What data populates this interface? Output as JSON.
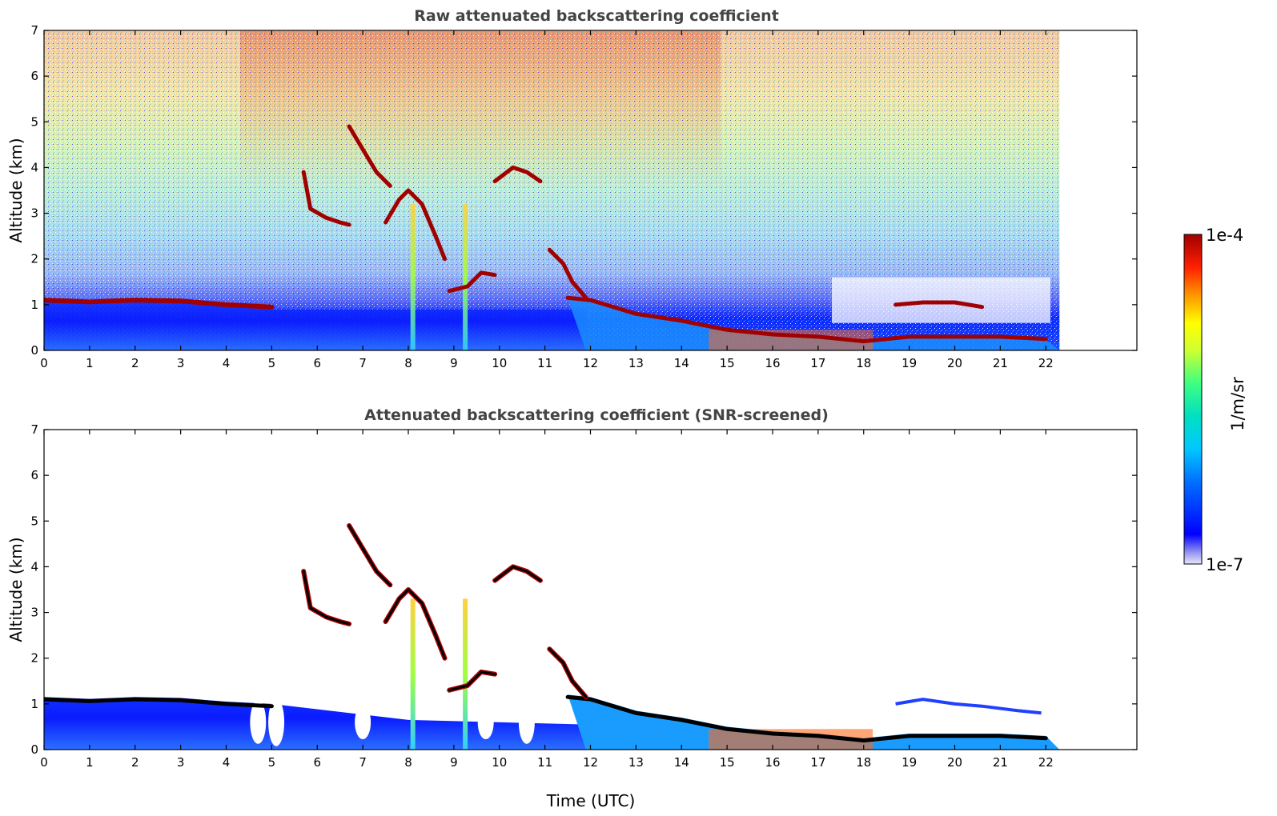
{
  "chart_data": [
    {
      "type": "heatmap",
      "title": "Raw attenuated backscattering coefficient",
      "ylabel": "Altitude (km)",
      "xlabel": "",
      "xlim": [
        0,
        24
      ],
      "ylim": [
        0,
        7
      ],
      "x_ticks": [
        "0",
        "1",
        "2",
        "3",
        "4",
        "5",
        "6",
        "7",
        "8",
        "9",
        "10",
        "11",
        "12",
        "13",
        "14",
        "15",
        "16",
        "17",
        "18",
        "19",
        "20",
        "21",
        "22"
      ],
      "y_ticks": [
        "0",
        "1",
        "2",
        "3",
        "4",
        "5",
        "6",
        "7"
      ],
      "data_end_time": 22.3,
      "screening": "none",
      "features": {
        "boundary_layer_top": [
          [
            0,
            1.1
          ],
          [
            1,
            1.06
          ],
          [
            2,
            1.1
          ],
          [
            3,
            1.08
          ],
          [
            4,
            1.0
          ],
          [
            5,
            0.95
          ]
        ],
        "cloud_base": [
          [
            11.5,
            1.15
          ],
          [
            12,
            1.1
          ],
          [
            13,
            0.8
          ],
          [
            14,
            0.65
          ],
          [
            15,
            0.45
          ],
          [
            16,
            0.35
          ],
          [
            17,
            0.3
          ],
          [
            18,
            0.2
          ],
          [
            19,
            0.3
          ],
          [
            20,
            0.3
          ],
          [
            21,
            0.3
          ],
          [
            22,
            0.25
          ]
        ],
        "elevated_layers": [
          [
            [
              5.7,
              3.9
            ],
            [
              5.85,
              3.1
            ],
            [
              6.2,
              2.9
            ],
            [
              6.5,
              2.8
            ],
            [
              6.7,
              2.75
            ]
          ],
          [
            [
              6.7,
              4.9
            ],
            [
              7.0,
              4.4
            ],
            [
              7.3,
              3.9
            ],
            [
              7.6,
              3.6
            ]
          ],
          [
            [
              7.5,
              2.8
            ],
            [
              7.8,
              3.3
            ],
            [
              8.0,
              3.5
            ],
            [
              8.3,
              3.2
            ],
            [
              8.6,
              2.5
            ],
            [
              8.8,
              2.0
            ]
          ],
          [
            [
              8.9,
              1.3
            ],
            [
              9.3,
              1.4
            ],
            [
              9.6,
              1.7
            ],
            [
              9.9,
              1.65
            ]
          ],
          [
            [
              9.9,
              3.7
            ],
            [
              10.3,
              4.0
            ],
            [
              10.6,
              3.9
            ],
            [
              10.9,
              3.7
            ]
          ],
          [
            [
              11.1,
              2.2
            ],
            [
              11.4,
              1.9
            ],
            [
              11.6,
              1.5
            ],
            [
              11.9,
              1.15
            ]
          ],
          [
            [
              18.7,
              1.0
            ],
            [
              19.3,
              1.05
            ],
            [
              20.0,
              1.05
            ],
            [
              20.6,
              0.95
            ]
          ]
        ],
        "precipitation_columns": [
          8.1,
          9.25
        ]
      }
    },
    {
      "type": "heatmap",
      "title": "Attenuated backscattering coefficient (SNR-screened)",
      "ylabel": "Altitude (km)",
      "xlabel": "Time (UTC)",
      "xlim": [
        0,
        24
      ],
      "ylim": [
        0,
        7
      ],
      "x_ticks": [
        "0",
        "1",
        "2",
        "3",
        "4",
        "5",
        "6",
        "7",
        "8",
        "9",
        "10",
        "11",
        "12",
        "13",
        "14",
        "15",
        "16",
        "17",
        "18",
        "19",
        "20",
        "21",
        "22"
      ],
      "y_ticks": [
        "0",
        "1",
        "2",
        "3",
        "4",
        "5",
        "6",
        "7"
      ],
      "data_end_time": 22.3,
      "screening": "SNR"
    }
  ],
  "colorbar": {
    "max_label": "1e-4",
    "min_label": "1e-7",
    "units": "1/m/sr",
    "scale": "log",
    "range": [
      1e-07,
      0.0001
    ]
  },
  "colors": {
    "colormap": [
      "#e6e6fa",
      "#0000ff",
      "#0080ff",
      "#00e0e0",
      "#40ff80",
      "#d0ff30",
      "#ffff00",
      "#ff9000",
      "#ff2000",
      "#a00000",
      "#700000"
    ],
    "layer_core_screened": "#000000",
    "title": "#444444"
  }
}
